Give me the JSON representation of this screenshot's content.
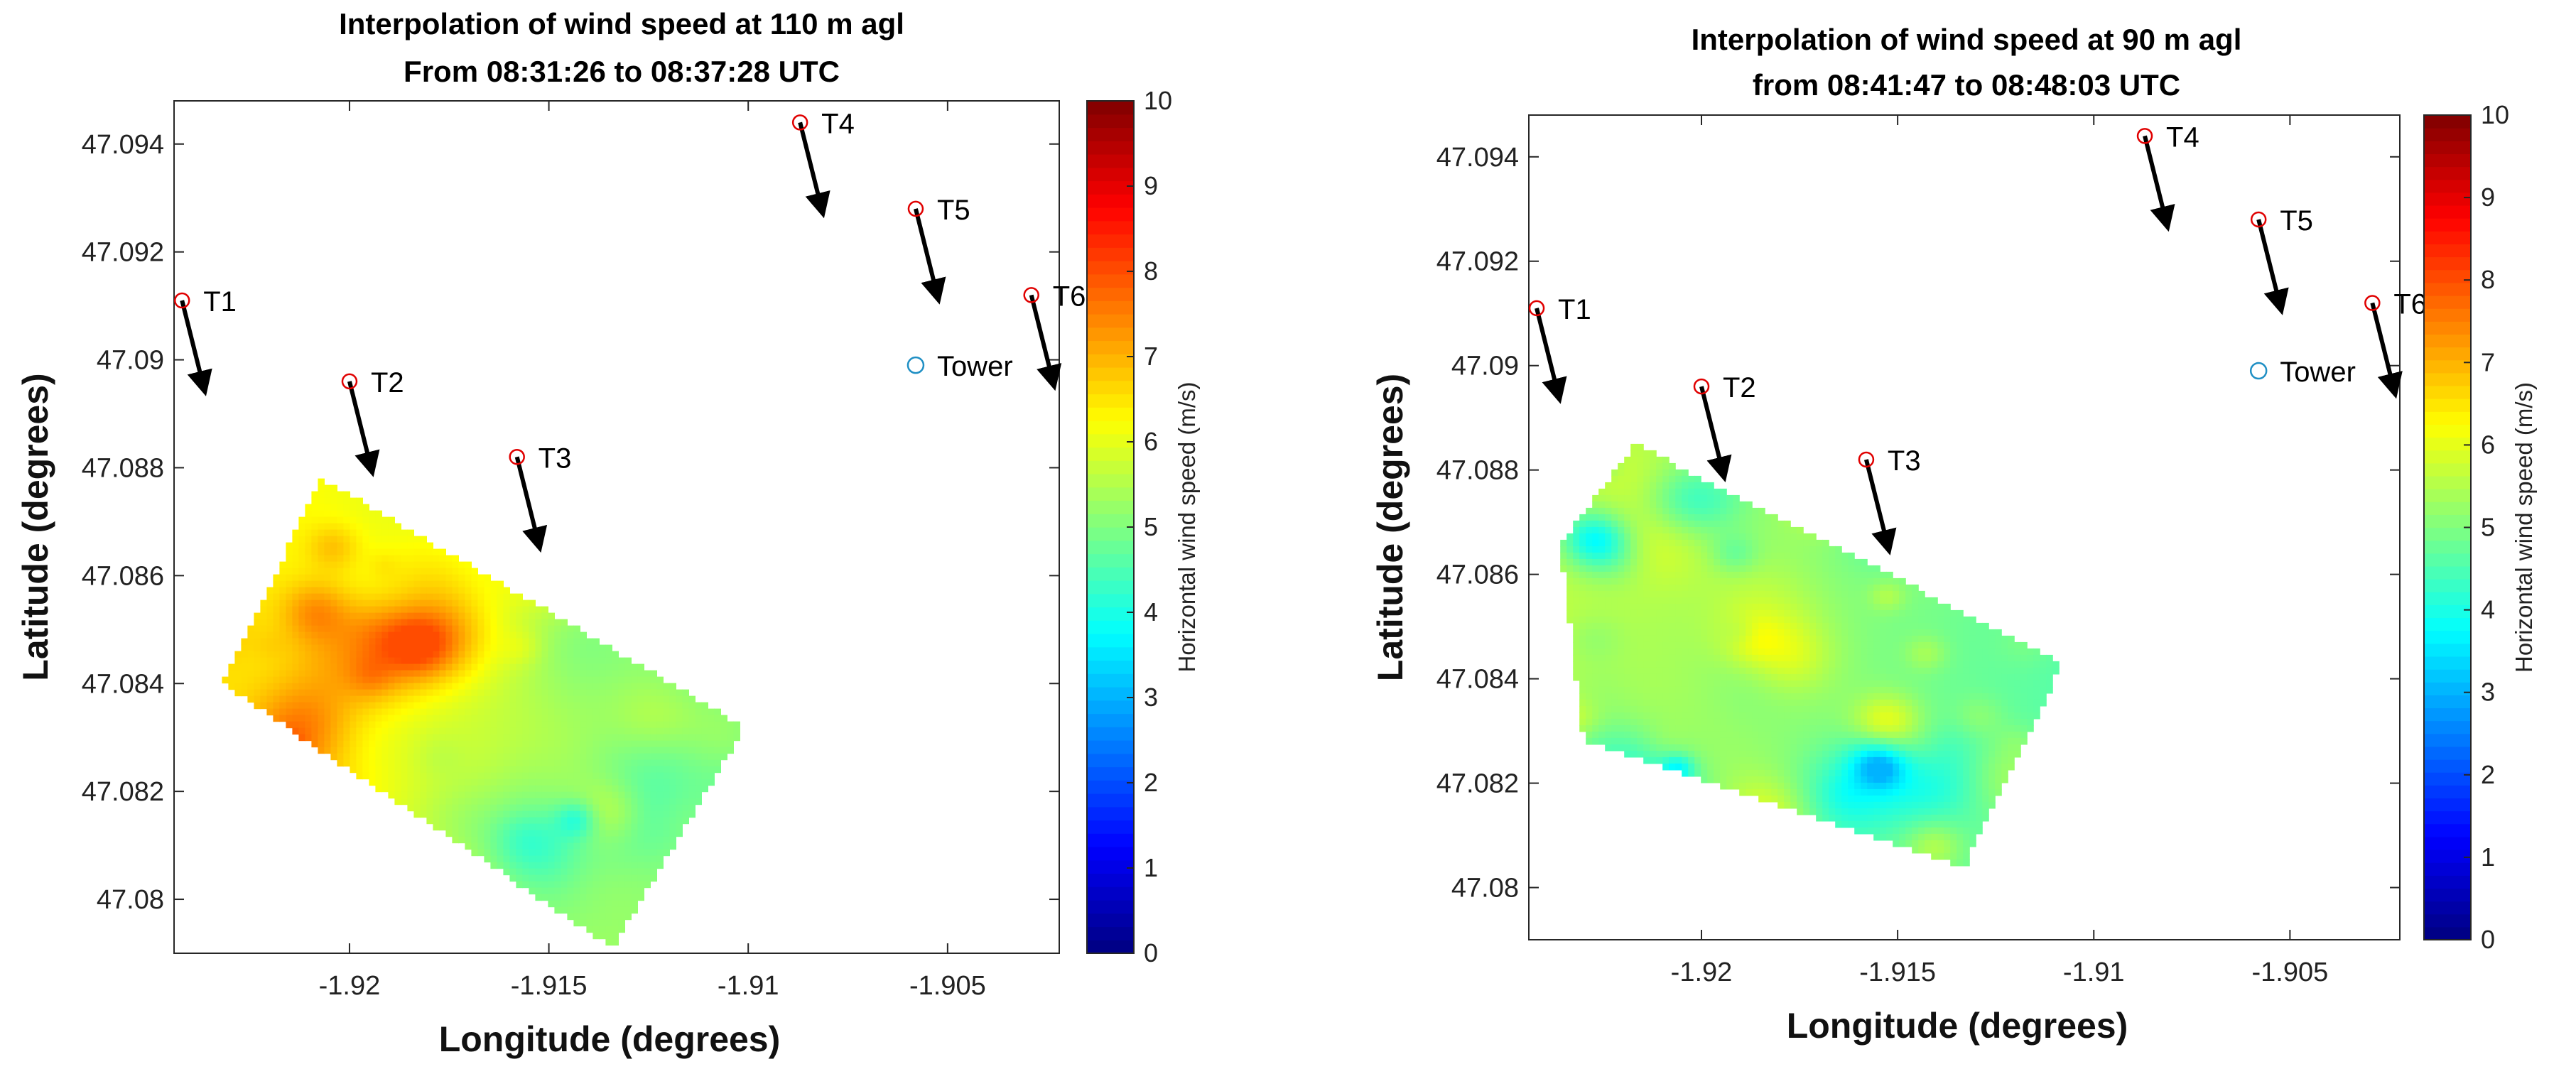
{
  "chart_data": [
    {
      "type": "heatmap",
      "title": "Interpolation of wind speed at 110 m agl",
      "subtitle": "From 08:31:26 to 08:37:28 UTC",
      "xlabel": "Longitude (degrees)",
      "ylabel": "Latitude (degrees)",
      "xlim": [
        -1.9244,
        -1.9022
      ],
      "ylim": [
        47.079,
        47.0948
      ],
      "xticks": [
        -1.92,
        -1.915,
        -1.91,
        -1.905
      ],
      "xtick_labels": [
        "-1.92",
        "-1.915",
        "-1.91",
        "-1.905"
      ],
      "yticks": [
        47.08,
        47.082,
        47.084,
        47.086,
        47.088,
        47.09,
        47.092,
        47.094
      ],
      "ytick_labels": [
        "47.08",
        "47.082",
        "47.084",
        "47.086",
        "47.088",
        "47.09",
        "47.092",
        "47.094"
      ],
      "grid": false,
      "colorbar": {
        "label": "Horizontal wind speed (m/s)",
        "range": [
          0,
          10
        ],
        "ticks": [
          "0",
          "1",
          "2",
          "3",
          "4",
          "5",
          "6",
          "7",
          "8",
          "9",
          "10"
        ],
        "colormap": "jet"
      },
      "scan_region": [
        [
          -1.9232,
          47.084
        ],
        [
          -1.9207,
          47.0878
        ],
        [
          -1.9101,
          47.0832
        ],
        [
          -1.9134,
          47.0791
        ]
      ],
      "field_summary": {
        "typical_speed": 5.5,
        "min_speed": 4.0,
        "max_speed": 7.5
      },
      "turbines": [
        {
          "name": "T1",
          "lon": -1.9242,
          "lat": 47.0911,
          "u": 0.25,
          "v": -1.0
        },
        {
          "name": "T2",
          "lon": -1.92,
          "lat": 47.0896,
          "u": 0.25,
          "v": -1.0
        },
        {
          "name": "T3",
          "lon": -1.9158,
          "lat": 47.0882,
          "u": 0.25,
          "v": -1.0
        },
        {
          "name": "T4",
          "lon": -1.9087,
          "lat": 47.0944,
          "u": 0.25,
          "v": -1.0
        },
        {
          "name": "T5",
          "lon": -1.9058,
          "lat": 47.0928,
          "u": 0.25,
          "v": -1.0
        },
        {
          "name": "T6",
          "lon": -1.9029,
          "lat": 47.0912,
          "u": 0.25,
          "v": -1.0
        }
      ],
      "tower": {
        "name": "Tower",
        "lon": -1.9058,
        "lat": 47.0899
      }
    },
    {
      "type": "heatmap",
      "title": "Interpolation of wind speed at 90 m agl",
      "subtitle": "from 08:41:47 to 08:48:03 UTC",
      "xlabel": "Longitude (degrees)",
      "ylabel": "Latitude (degrees)",
      "xlim": [
        -1.9244,
        -1.9022
      ],
      "ylim": [
        47.079,
        47.0948
      ],
      "xticks": [
        -1.92,
        -1.915,
        -1.91,
        -1.905
      ],
      "xtick_labels": [
        "-1.92",
        "-1.915",
        "-1.91",
        "-1.905"
      ],
      "yticks": [
        47.08,
        47.082,
        47.084,
        47.086,
        47.088,
        47.09,
        47.092,
        47.094
      ],
      "ytick_labels": [
        "47.08",
        "47.082",
        "47.084",
        "47.086",
        "47.088",
        "47.09",
        "47.092",
        "47.094"
      ],
      "grid": false,
      "colorbar": {
        "label": "Horizontal wind speed (m/s)",
        "range": [
          0,
          10
        ],
        "ticks": [
          "0",
          "1",
          "2",
          "3",
          "4",
          "5",
          "6",
          "7",
          "8",
          "9",
          "10"
        ],
        "colormap": "jet"
      },
      "scan_region": [
        [
          -1.9236,
          47.0866
        ],
        [
          -1.9217,
          47.0885
        ],
        [
          -1.9108,
          47.0843
        ],
        [
          -1.9133,
          47.0804
        ],
        [
          -1.923,
          47.0828
        ]
      ],
      "field_summary": {
        "typical_speed": 5.0,
        "min_speed": 3.5,
        "max_speed": 7.5
      },
      "turbines": [
        {
          "name": "T1",
          "lon": -1.9242,
          "lat": 47.0911,
          "u": 0.25,
          "v": -1.0
        },
        {
          "name": "T2",
          "lon": -1.92,
          "lat": 47.0896,
          "u": 0.25,
          "v": -1.0
        },
        {
          "name": "T3",
          "lon": -1.9158,
          "lat": 47.0882,
          "u": 0.25,
          "v": -1.0
        },
        {
          "name": "T4",
          "lon": -1.9087,
          "lat": 47.0944,
          "u": 0.25,
          "v": -1.0
        },
        {
          "name": "T5",
          "lon": -1.9058,
          "lat": 47.0928,
          "u": 0.25,
          "v": -1.0
        },
        {
          "name": "T6",
          "lon": -1.9029,
          "lat": 47.0912,
          "u": 0.25,
          "v": -1.0
        }
      ],
      "tower": {
        "name": "Tower",
        "lon": -1.9058,
        "lat": 47.0899
      }
    }
  ]
}
